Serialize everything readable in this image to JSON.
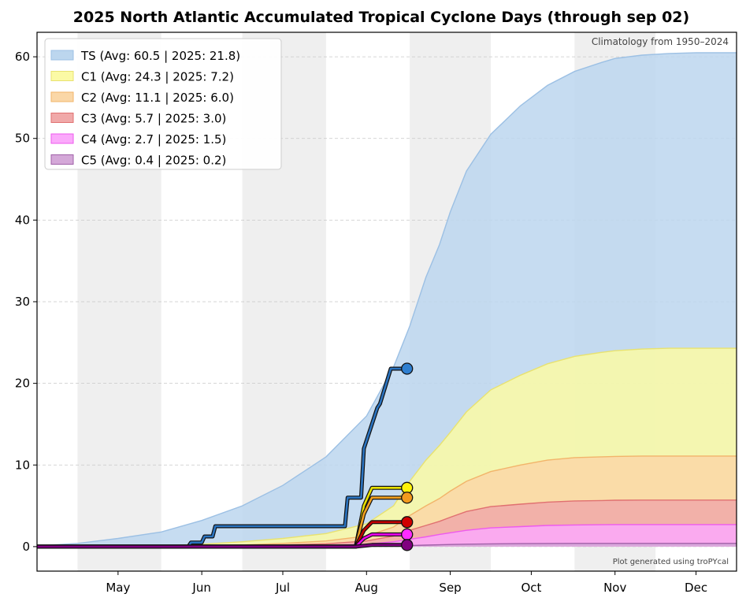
{
  "chart_data": {
    "type": "area",
    "title": "2025 North Atlantic Accumulated Tropical Cyclone Days (through sep 02)",
    "climatology_note": "Climatology from 1950–2024",
    "credit": "Plot generated using troPYcal",
    "xlabel": "",
    "ylabel": "",
    "ylim": [
      -3,
      63
    ],
    "yticks": [
      0,
      10,
      20,
      30,
      40,
      50,
      60
    ],
    "grid": "y-dashed",
    "legend_position": "top-left",
    "x_months": [
      "May",
      "Jun",
      "Jul",
      "Aug",
      "Sep",
      "Oct",
      "Nov",
      "Dec"
    ],
    "x_days_axis": "day of year",
    "x_range": [
      106,
      365
    ],
    "month_tick_days": [
      136,
      167,
      197,
      228,
      259,
      289,
      320,
      350
    ],
    "shaded_bands": [
      [
        121,
        152
      ],
      [
        182,
        213
      ],
      [
        244,
        274
      ],
      [
        305,
        335
      ]
    ],
    "x": [
      106,
      121,
      136,
      152,
      167,
      182,
      197,
      213,
      228,
      238,
      244,
      250,
      255,
      259,
      265,
      274,
      285,
      295,
      305,
      315,
      320,
      330,
      340,
      350,
      365
    ],
    "series": [
      {
        "name": "TS (Avg: 60.5 | 2025: 21.8)",
        "key": "TS",
        "fill": "#bcd6ee",
        "stroke": "#9cc0e4",
        "climatology": [
          0.1,
          0.4,
          1.0,
          1.8,
          3.2,
          5.0,
          7.5,
          11.0,
          16.0,
          22.0,
          27.0,
          33.0,
          37.0,
          41.0,
          46.0,
          50.5,
          54.0,
          56.5,
          58.2,
          59.3,
          59.8,
          60.2,
          60.4,
          60.5,
          60.5
        ],
        "observed_days": [
          106,
          162,
          163,
          167,
          168,
          171,
          172,
          220,
          221,
          226,
          227,
          232,
          233,
          237,
          238,
          243
        ],
        "observed_values": [
          0,
          0,
          0.5,
          0.5,
          1.25,
          1.25,
          2.5,
          2.5,
          6.0,
          6.0,
          12.0,
          17.0,
          17.5,
          21.8,
          21.8,
          21.8
        ],
        "end_marker_color": "#2f7fd0",
        "line_color": "#2a73c0",
        "current": 21.8
      },
      {
        "name": "C1 (Avg: 24.3 | 2025: 7.2)",
        "key": "C1",
        "fill": "#fbfaa5",
        "stroke": "#e8e270",
        "climatology": [
          0,
          0,
          0.05,
          0.1,
          0.3,
          0.6,
          1.0,
          1.6,
          2.8,
          5.0,
          8.0,
          10.6,
          12.4,
          14.0,
          16.5,
          19.2,
          21.0,
          22.4,
          23.3,
          23.8,
          24.0,
          24.2,
          24.3,
          24.3,
          24.3
        ],
        "observed_days": [
          106,
          224,
          227,
          230,
          243
        ],
        "observed_values": [
          0,
          0,
          5.0,
          7.2,
          7.2
        ],
        "end_marker_color": "#fff20a",
        "line_color": "#e8e000",
        "current": 7.2
      },
      {
        "name": "C2 (Avg: 11.1 | 2025: 6.0)",
        "key": "C2",
        "fill": "#fad7a7",
        "stroke": "#f2b46a",
        "climatology": [
          0,
          0,
          0,
          0.05,
          0.1,
          0.2,
          0.4,
          0.7,
          1.3,
          2.4,
          3.8,
          5.0,
          5.9,
          6.8,
          8.0,
          9.2,
          10.0,
          10.6,
          10.9,
          11.0,
          11.05,
          11.1,
          11.1,
          11.1,
          11.1
        ],
        "observed_days": [
          106,
          224,
          227,
          230,
          243
        ],
        "observed_values": [
          0,
          0,
          4.0,
          6.0,
          6.0
        ],
        "end_marker_color": "#f29a1e",
        "line_color": "#f0a020",
        "current": 6.0
      },
      {
        "name": "C3 (Avg: 5.7 | 2025: 3.0)",
        "key": "C3",
        "fill": "#f0a9a9",
        "stroke": "#e07070",
        "climatology": [
          0,
          0,
          0,
          0,
          0.05,
          0.1,
          0.2,
          0.35,
          0.7,
          1.3,
          2.0,
          2.6,
          3.1,
          3.6,
          4.3,
          4.9,
          5.2,
          5.45,
          5.6,
          5.65,
          5.68,
          5.7,
          5.7,
          5.7,
          5.7
        ],
        "observed_days": [
          106,
          224,
          227,
          230,
          243
        ],
        "observed_values": [
          0,
          0,
          2.0,
          3.0,
          3.0
        ],
        "end_marker_color": "#d00000",
        "line_color": "#c00000",
        "current": 3.0
      },
      {
        "name": "C4 (Avg: 2.7 | 2025: 1.5)",
        "key": "C4",
        "fill": "#fba9fb",
        "stroke": "#ee5aee",
        "climatology": [
          0,
          0,
          0,
          0,
          0,
          0.05,
          0.1,
          0.15,
          0.3,
          0.6,
          0.9,
          1.2,
          1.5,
          1.7,
          2.0,
          2.3,
          2.45,
          2.6,
          2.65,
          2.68,
          2.7,
          2.7,
          2.7,
          2.7,
          2.7
        ],
        "observed_days": [
          106,
          224,
          227,
          230,
          243
        ],
        "observed_values": [
          0,
          0,
          1.0,
          1.5,
          1.5
        ],
        "end_marker_color": "#ff2cff",
        "line_color": "#ee00ee",
        "current": 1.5
      },
      {
        "name": "C5 (Avg: 0.4 | 2025: 0.2)",
        "key": "C5",
        "fill": "#d4a8d8",
        "stroke": "#a060a8",
        "climatology": [
          0,
          0,
          0,
          0,
          0,
          0,
          0,
          0.02,
          0.04,
          0.08,
          0.13,
          0.18,
          0.22,
          0.26,
          0.3,
          0.34,
          0.37,
          0.39,
          0.4,
          0.4,
          0.4,
          0.4,
          0.4,
          0.4,
          0.4
        ],
        "observed_days": [
          106,
          224,
          230,
          243
        ],
        "observed_values": [
          0,
          0,
          0.2,
          0.2
        ],
        "end_marker_color": "#800080",
        "line_color": "#800080",
        "current": 0.2
      }
    ]
  }
}
